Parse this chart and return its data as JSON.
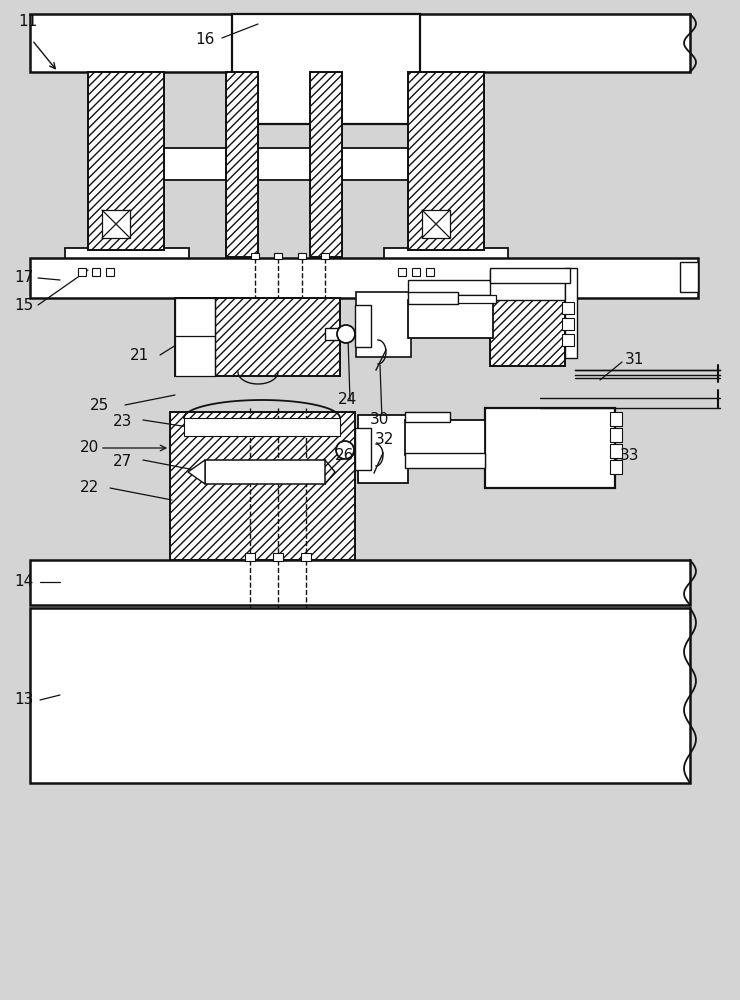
{
  "bg_color": "#d4d4d4",
  "line_color": "#111111",
  "white": "#ffffff",
  "figsize": [
    7.4,
    10.0
  ],
  "dpi": 100
}
